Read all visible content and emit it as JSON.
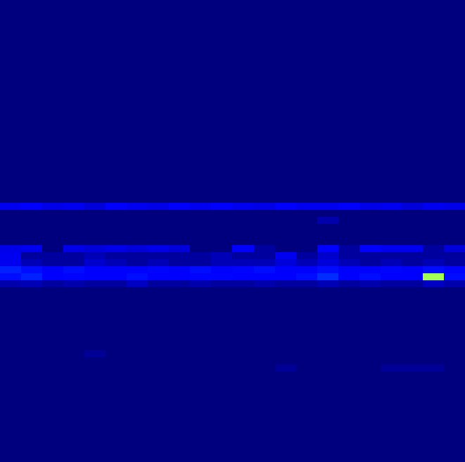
{
  "chart_data": {
    "type": "heatmap",
    "color": "jet",
    "tick_labels": false,
    "value_range": [
      0,
      1
    ],
    "cells": [
      [
        0,
        0,
        0,
        0,
        0,
        0,
        0,
        0,
        0,
        0,
        0,
        0,
        0,
        0,
        0,
        0,
        0,
        0,
        0,
        0,
        0,
        0
      ],
      [
        0,
        0,
        0,
        0,
        0,
        0,
        0,
        0,
        0,
        0,
        0,
        0,
        0,
        0,
        0,
        0,
        0,
        0,
        0,
        0,
        0,
        0
      ],
      [
        0,
        0,
        0,
        0,
        0,
        0,
        0,
        0,
        0,
        0,
        0,
        0,
        0,
        0,
        0,
        0,
        0,
        0,
        0,
        0,
        0,
        0
      ],
      [
        0,
        0,
        0,
        0,
        0,
        0,
        0,
        0,
        0,
        0,
        0,
        0,
        0,
        0,
        0,
        0,
        0,
        0,
        0,
        0,
        0,
        0
      ],
      [
        0,
        0,
        0,
        0,
        0,
        0,
        0,
        0,
        0,
        0,
        0,
        0,
        0,
        0,
        0,
        0,
        0,
        0,
        0,
        0,
        0,
        0
      ],
      [
        0,
        0,
        0,
        0,
        0,
        0,
        0,
        0,
        0,
        0,
        0,
        0,
        0,
        0,
        0,
        0,
        0,
        0,
        0,
        0,
        0,
        0
      ],
      [
        0,
        0,
        0,
        0,
        0,
        0,
        0,
        0,
        0,
        0,
        0,
        0,
        0,
        0,
        0,
        0,
        0,
        0,
        0,
        0,
        0,
        0
      ],
      [
        0,
        0,
        0,
        0,
        0,
        0,
        0,
        0,
        0,
        0,
        0,
        0,
        0,
        0,
        0,
        0,
        0,
        0,
        0,
        0,
        0,
        0
      ],
      [
        0,
        0,
        0,
        0,
        0,
        0,
        0,
        0,
        0,
        0,
        0,
        0,
        0,
        0,
        0,
        0,
        0,
        0,
        0,
        0,
        0,
        0
      ],
      [
        0,
        0,
        0,
        0,
        0,
        0,
        0,
        0,
        0,
        0,
        0,
        0,
        0,
        0,
        0,
        0,
        0,
        0,
        0,
        0,
        0,
        0
      ],
      [
        0,
        0,
        0,
        0,
        0,
        0,
        0,
        0,
        0,
        0,
        0,
        0,
        0,
        0,
        0,
        0,
        0,
        0,
        0,
        0,
        0,
        0
      ],
      [
        0,
        0,
        0,
        0,
        0,
        0,
        0,
        0,
        0,
        0,
        0,
        0,
        0,
        0,
        0,
        0,
        0,
        0,
        0,
        0,
        0,
        0
      ],
      [
        0,
        0,
        0,
        0,
        0,
        0,
        0,
        0,
        0,
        0,
        0,
        0,
        0,
        0,
        0,
        0,
        0,
        0,
        0,
        0,
        0,
        0
      ],
      [
        0,
        0,
        0,
        0,
        0,
        0,
        0,
        0,
        0,
        0,
        0,
        0,
        0,
        0,
        0,
        0,
        0,
        0,
        0,
        0,
        0,
        0
      ],
      [
        0,
        0,
        0,
        0,
        0,
        0,
        0,
        0,
        0,
        0,
        0,
        0,
        0,
        0,
        0,
        0,
        0,
        0,
        0,
        0,
        0,
        0
      ],
      [
        0,
        0,
        0,
        0,
        0,
        0,
        0,
        0,
        0,
        0,
        0,
        0,
        0,
        0,
        0,
        0,
        0,
        0,
        0,
        0,
        0,
        0
      ],
      [
        0,
        0,
        0,
        0,
        0,
        0,
        0,
        0,
        0,
        0,
        0,
        0,
        0,
        0,
        0,
        0,
        0,
        0,
        0,
        0,
        0,
        0
      ],
      [
        0,
        0,
        0,
        0,
        0,
        0,
        0,
        0,
        0,
        0,
        0,
        0,
        0,
        0,
        0,
        0,
        0,
        0,
        0,
        0,
        0,
        0
      ],
      [
        0,
        0,
        0,
        0,
        0,
        0,
        0,
        0,
        0,
        0,
        0,
        0,
        0,
        0,
        0,
        0,
        0,
        0,
        0,
        0,
        0,
        0
      ],
      [
        0,
        0,
        0,
        0,
        0,
        0,
        0,
        0,
        0,
        0,
        0,
        0,
        0,
        0,
        0,
        0,
        0,
        0,
        0,
        0,
        0,
        0
      ],
      [
        0,
        0,
        0,
        0,
        0,
        0,
        0,
        0,
        0,
        0,
        0,
        0,
        0,
        0,
        0,
        0,
        0,
        0,
        0,
        0,
        0,
        0
      ],
      [
        0,
        0,
        0,
        0,
        0,
        0,
        0,
        0,
        0,
        0,
        0,
        0,
        0,
        0,
        0,
        0,
        0,
        0,
        0,
        0,
        0,
        0
      ],
      [
        0,
        0,
        0,
        0,
        0,
        0,
        0,
        0,
        0,
        0,
        0,
        0,
        0,
        0,
        0,
        0,
        0,
        0,
        0,
        0,
        0,
        0
      ],
      [
        0,
        0,
        0,
        0,
        0,
        0,
        0,
        0,
        0,
        0,
        0,
        0,
        0,
        0,
        0,
        0,
        0,
        0,
        0,
        0,
        0,
        0
      ],
      [
        0,
        0,
        0,
        0,
        0,
        0,
        0,
        0,
        0,
        0,
        0,
        0,
        0,
        0,
        0,
        0,
        0,
        0,
        0,
        0,
        0,
        0
      ],
      [
        0,
        0,
        0,
        0,
        0,
        0,
        0,
        0,
        0,
        0,
        0,
        0,
        0,
        0,
        0,
        0,
        0,
        0,
        0,
        0,
        0,
        0
      ],
      [
        0,
        0,
        0,
        0,
        0,
        0,
        0,
        0,
        0,
        0,
        0,
        0,
        0,
        0,
        0,
        0,
        0,
        0,
        0,
        0,
        0,
        0
      ],
      [
        0,
        0,
        0,
        0,
        0,
        0,
        0,
        0,
        0,
        0,
        0,
        0,
        0,
        0,
        0,
        0,
        0,
        0,
        0,
        0,
        0,
        0
      ],
      [
        0,
        0,
        0,
        0,
        0,
        0,
        0,
        0,
        0,
        0,
        0,
        0,
        0,
        0,
        0,
        0,
        0,
        0,
        0,
        0,
        0,
        0
      ],
      [
        0.1,
        0.11,
        0.09,
        0.1,
        0.08,
        0.11,
        0.1,
        0.09,
        0.11,
        0.1,
        0.11,
        0.1,
        0.09,
        0.11,
        0.1,
        0.1,
        0.11,
        0.09,
        0.1,
        0.08,
        0.1,
        0.09
      ],
      [
        0,
        0,
        0,
        0,
        0,
        0,
        0,
        0,
        0,
        0,
        0,
        0,
        0,
        0,
        0,
        0,
        0,
        0,
        0,
        0,
        0,
        0
      ],
      [
        0,
        0,
        0,
        0,
        0,
        0,
        0,
        0,
        0,
        0,
        0,
        0,
        0,
        0,
        0,
        0.04,
        0,
        0,
        0,
        0,
        0,
        0
      ],
      [
        0,
        0,
        0,
        0,
        0,
        0,
        0,
        0,
        0,
        0,
        0,
        0,
        0,
        0,
        0,
        0,
        0,
        0,
        0,
        0,
        0,
        0
      ],
      [
        0,
        0,
        0,
        0,
        0,
        0,
        0,
        0,
        0,
        0,
        0,
        0,
        0,
        0,
        0,
        0,
        0,
        0,
        0,
        0,
        0,
        0
      ],
      [
        0,
        0,
        0,
        0,
        0,
        0,
        0,
        0,
        0,
        0,
        0,
        0,
        0,
        0,
        0,
        0,
        0,
        0,
        0,
        0,
        0,
        0
      ],
      [
        0.09,
        0.1,
        0,
        0.09,
        0.08,
        0.09,
        0.08,
        0.09,
        0.08,
        0,
        0,
        0.11,
        0.03,
        0,
        0,
        0.11,
        0.03,
        0.11,
        0.1,
        0.1,
        0.03,
        0.08
      ],
      [
        0.1,
        0.03,
        0.03,
        0.03,
        0.05,
        0.03,
        0.03,
        0.03,
        0.03,
        0.03,
        0.05,
        0.03,
        0.03,
        0.1,
        0.03,
        0.07,
        0.03,
        0.03,
        0.03,
        0.03,
        0.03,
        0.03
      ],
      [
        0.1,
        0.05,
        0.03,
        0.03,
        0.07,
        0.05,
        0.03,
        0.05,
        0.03,
        0.03,
        0.05,
        0.05,
        0.05,
        0.08,
        0.05,
        0.08,
        0.05,
        0.03,
        0.05,
        0.03,
        0.05,
        0.03
      ],
      [
        0.16,
        0.14,
        0.12,
        0.14,
        0.12,
        0.11,
        0.12,
        0.13,
        0.12,
        0.14,
        0.12,
        0.13,
        0.14,
        0.12,
        0.12,
        0.14,
        0.12,
        0.12,
        0.13,
        0.12,
        0.14,
        0.13
      ],
      [
        0.14,
        0.16,
        0.12,
        0.13,
        0.12,
        0.12,
        0.14,
        0.12,
        0.12,
        0.13,
        0.13,
        0.12,
        0.12,
        0.12,
        0.14,
        0.17,
        0.12,
        0.14,
        0.12,
        0.12,
        0.55,
        0.14
      ],
      [
        0.04,
        0.05,
        0.03,
        0.04,
        0.03,
        0.03,
        0.06,
        0.03,
        0.03,
        0.04,
        0.03,
        0.03,
        0.04,
        0.03,
        0.03,
        0.05,
        0.03,
        0.04,
        0.03,
        0.03,
        0.06,
        0.04
      ],
      [
        0,
        0,
        0,
        0,
        0,
        0,
        0,
        0,
        0,
        0,
        0,
        0,
        0,
        0,
        0,
        0,
        0,
        0,
        0,
        0,
        0,
        0
      ],
      [
        0,
        0,
        0,
        0,
        0,
        0,
        0,
        0,
        0,
        0,
        0,
        0,
        0,
        0,
        0,
        0,
        0,
        0,
        0,
        0,
        0,
        0
      ],
      [
        0,
        0,
        0,
        0,
        0,
        0,
        0,
        0,
        0,
        0,
        0,
        0,
        0,
        0,
        0,
        0,
        0,
        0,
        0,
        0,
        0,
        0
      ],
      [
        0,
        0,
        0,
        0,
        0,
        0,
        0,
        0,
        0,
        0,
        0,
        0,
        0,
        0,
        0,
        0,
        0,
        0,
        0,
        0,
        0,
        0
      ],
      [
        0,
        0,
        0,
        0,
        0,
        0,
        0,
        0,
        0,
        0,
        0,
        0,
        0,
        0,
        0,
        0,
        0,
        0,
        0,
        0,
        0,
        0
      ],
      [
        0,
        0,
        0,
        0,
        0,
        0,
        0,
        0,
        0,
        0,
        0,
        0,
        0,
        0,
        0,
        0,
        0,
        0,
        0,
        0,
        0,
        0
      ],
      [
        0,
        0,
        0,
        0,
        0,
        0,
        0,
        0,
        0,
        0,
        0,
        0,
        0,
        0,
        0,
        0,
        0,
        0,
        0,
        0,
        0,
        0
      ],
      [
        0,
        0,
        0,
        0,
        0,
        0,
        0,
        0,
        0,
        0,
        0,
        0,
        0,
        0,
        0,
        0,
        0,
        0,
        0,
        0,
        0,
        0
      ],
      [
        0,
        0,
        0,
        0,
        0,
        0,
        0,
        0,
        0,
        0,
        0,
        0,
        0,
        0,
        0,
        0,
        0,
        0,
        0,
        0,
        0,
        0
      ],
      [
        0,
        0,
        0,
        0,
        0.02,
        0,
        0,
        0,
        0,
        0,
        0,
        0,
        0,
        0,
        0,
        0,
        0,
        0,
        0,
        0,
        0,
        0
      ],
      [
        0,
        0,
        0,
        0,
        0,
        0,
        0,
        0,
        0,
        0,
        0,
        0,
        0,
        0,
        0,
        0,
        0,
        0,
        0,
        0,
        0,
        0
      ],
      [
        0,
        0,
        0,
        0,
        0,
        0,
        0,
        0,
        0,
        0,
        0,
        0,
        0,
        0.02,
        0,
        0,
        0,
        0,
        0.02,
        0.02,
        0.02,
        0
      ],
      [
        0,
        0,
        0,
        0,
        0,
        0,
        0,
        0,
        0,
        0,
        0,
        0,
        0,
        0,
        0,
        0,
        0,
        0,
        0,
        0,
        0,
        0
      ],
      [
        0,
        0,
        0,
        0,
        0,
        0,
        0,
        0,
        0,
        0,
        0,
        0,
        0,
        0,
        0,
        0,
        0,
        0,
        0,
        0,
        0,
        0
      ],
      [
        0,
        0,
        0,
        0,
        0,
        0,
        0,
        0,
        0,
        0,
        0,
        0,
        0,
        0,
        0,
        0,
        0,
        0,
        0,
        0,
        0,
        0
      ],
      [
        0,
        0,
        0,
        0,
        0,
        0,
        0,
        0,
        0,
        0,
        0,
        0,
        0,
        0,
        0,
        0,
        0,
        0,
        0,
        0,
        0,
        0
      ],
      [
        0,
        0,
        0,
        0,
        0,
        0,
        0,
        0,
        0,
        0,
        0,
        0,
        0,
        0,
        0,
        0,
        0,
        0,
        0,
        0,
        0,
        0
      ],
      [
        0,
        0,
        0,
        0,
        0,
        0,
        0,
        0,
        0,
        0,
        0,
        0,
        0,
        0,
        0,
        0,
        0,
        0,
        0,
        0,
        0,
        0
      ],
      [
        0,
        0,
        0,
        0,
        0,
        0,
        0,
        0,
        0,
        0,
        0,
        0,
        0,
        0,
        0,
        0,
        0,
        0,
        0,
        0,
        0,
        0
      ],
      [
        0,
        0,
        0,
        0,
        0,
        0,
        0,
        0,
        0,
        0,
        0,
        0,
        0,
        0,
        0,
        0,
        0,
        0,
        0,
        0,
        0,
        0
      ],
      [
        0,
        0,
        0,
        0,
        0,
        0,
        0,
        0,
        0,
        0,
        0,
        0,
        0,
        0,
        0,
        0,
        0,
        0,
        0,
        0,
        0,
        0
      ],
      [
        0,
        0,
        0,
        0,
        0,
        0,
        0,
        0,
        0,
        0,
        0,
        0,
        0,
        0,
        0,
        0,
        0,
        0,
        0,
        0,
        0,
        0
      ],
      [
        0,
        0,
        0,
        0,
        0,
        0,
        0,
        0,
        0,
        0,
        0,
        0,
        0,
        0,
        0,
        0,
        0,
        0,
        0,
        0,
        0,
        0
      ],
      [
        0,
        0,
        0,
        0,
        0,
        0,
        0,
        0,
        0,
        0,
        0,
        0,
        0,
        0,
        0,
        0,
        0,
        0,
        0,
        0,
        0,
        0
      ],
      [
        0,
        0,
        0,
        0,
        0,
        0,
        0,
        0,
        0,
        0,
        0,
        0,
        0,
        0,
        0,
        0,
        0,
        0,
        0,
        0,
        0,
        0
      ]
    ]
  }
}
